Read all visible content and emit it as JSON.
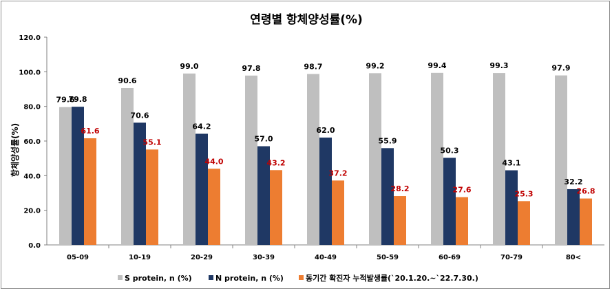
{
  "chart_data": {
    "type": "bar",
    "title": "연령별 항체양성률(%)",
    "xlabel": "",
    "ylabel": "항체양성률(%)",
    "ylim": [
      0,
      120
    ],
    "yticks": [
      "0.0",
      "20.0",
      "40.0",
      "60.0",
      "80.0",
      "100.0",
      "120.0"
    ],
    "grid": false,
    "legend_position": "bottom",
    "categories": [
      "05-09",
      "10-19",
      "20-29",
      "30-39",
      "40-49",
      "50-59",
      "60-69",
      "70-79",
      "80<"
    ],
    "series": [
      {
        "name": "S protein, n (%)",
        "color": "#BFBFBF",
        "label_color": "#000000",
        "values": [
          79.6,
          90.6,
          99.0,
          97.8,
          98.7,
          99.2,
          99.4,
          99.3,
          97.9
        ],
        "labels": [
          "79.6",
          "90.6",
          "99.0",
          "97.8",
          "98.7",
          "99.2",
          "99.4",
          "99.3",
          "97.9"
        ]
      },
      {
        "name": "N protein, n (%)",
        "color": "#1F3864",
        "label_color": "#000000",
        "values": [
          79.8,
          70.6,
          64.2,
          57.0,
          62.0,
          55.9,
          50.3,
          43.1,
          32.2
        ],
        "labels": [
          "79.8",
          "70.6",
          "64.2",
          "57.0",
          "62.0",
          "55.9",
          "50.3",
          "43.1",
          "32.2"
        ]
      },
      {
        "name": "동기간 확진자 누적발생률(`20.1.20.~`22.7.30.)",
        "color": "#ED7D31",
        "label_color": "#C00000",
        "values": [
          61.6,
          55.1,
          44.0,
          43.2,
          37.2,
          28.2,
          27.6,
          25.3,
          26.8
        ],
        "labels": [
          "61.6",
          "55.1",
          "44.0",
          "43.2",
          "37.2",
          "28.2",
          "27.6",
          "25.3",
          "26.8"
        ]
      }
    ]
  }
}
